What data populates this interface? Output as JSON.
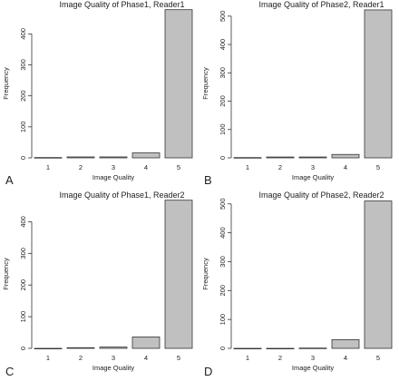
{
  "chart_data": [
    {
      "type": "bar",
      "panel_letter": "A",
      "title": "Image Quality of Phase1, Reader1",
      "xlabel": "Image Quality",
      "ylabel": "Frequency",
      "categories": [
        "1",
        "2",
        "3",
        "4",
        "5"
      ],
      "values": [
        1,
        3,
        3,
        16,
        478
      ],
      "ylim": [
        0,
        480
      ],
      "yticks": [
        0,
        100,
        200,
        300,
        400
      ],
      "grid": false,
      "bar_color": "#c0c0c0"
    },
    {
      "type": "bar",
      "panel_letter": "B",
      "title": "Image Quality of Phase2, Reader1",
      "xlabel": "Image Quality",
      "ylabel": "Frequency",
      "categories": [
        "1",
        "2",
        "3",
        "4",
        "5"
      ],
      "values": [
        1,
        3,
        3,
        12,
        522
      ],
      "ylim": [
        0,
        525
      ],
      "yticks": [
        0,
        100,
        200,
        300,
        400,
        500
      ],
      "grid": false,
      "bar_color": "#c0c0c0"
    },
    {
      "type": "bar",
      "panel_letter": "C",
      "title": "Image Quality of Phase1, Reader2",
      "xlabel": "Image Quality",
      "ylabel": "Frequency",
      "categories": [
        "1",
        "2",
        "3",
        "4",
        "5"
      ],
      "values": [
        0,
        2,
        4,
        36,
        468
      ],
      "ylim": [
        0,
        470
      ],
      "yticks": [
        0,
        100,
        200,
        300,
        400
      ],
      "grid": false,
      "bar_color": "#c0c0c0"
    },
    {
      "type": "bar",
      "panel_letter": "D",
      "title": "Image Quality of Phase2, Reader2",
      "xlabel": "Image Quality",
      "ylabel": "Frequency",
      "categories": [
        "1",
        "2",
        "3",
        "4",
        "5"
      ],
      "values": [
        0,
        0,
        1,
        30,
        510
      ],
      "ylim": [
        0,
        515
      ],
      "yticks": [
        0,
        100,
        200,
        300,
        400,
        500
      ],
      "grid": false,
      "bar_color": "#c0c0c0"
    }
  ]
}
